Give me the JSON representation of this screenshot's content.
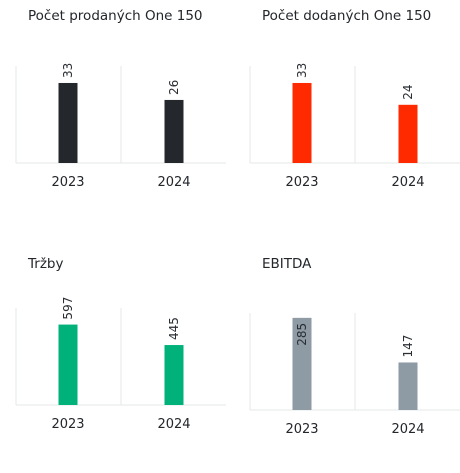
{
  "chart_data": [
    {
      "type": "bar",
      "title": "Počet prodaných One 150",
      "categories": [
        "2023",
        "2024"
      ],
      "values": [
        33,
        26
      ],
      "colors": [
        "#24272b",
        "#24272b"
      ],
      "ylim": [
        0,
        40
      ],
      "label_position": "above",
      "grid": false
    },
    {
      "type": "bar",
      "title": "Počet dodaných One 150",
      "categories": [
        "2023",
        "2024"
      ],
      "values": [
        33,
        24
      ],
      "colors": [
        "#ff2a00",
        "#ff2a00"
      ],
      "ylim": [
        0,
        40
      ],
      "label_position": "above",
      "grid": false
    },
    {
      "type": "bar",
      "title": "Tržby",
      "categories": [
        "2023",
        "2024"
      ],
      "values": [
        597,
        445
      ],
      "colors": [
        "#00b27a",
        "#00b27a"
      ],
      "ylim": [
        0,
        720
      ],
      "label_position": "above",
      "grid": false
    },
    {
      "type": "bar",
      "title": "EBITDA",
      "categories": [
        "2023",
        "2024"
      ],
      "values": [
        285,
        147
      ],
      "colors": [
        "#8e9aa4",
        "#8e9aa4"
      ],
      "ylim": [
        0,
        300
      ],
      "label_position": "inside-top for 2023, above for 2024",
      "grid": false
    }
  ]
}
